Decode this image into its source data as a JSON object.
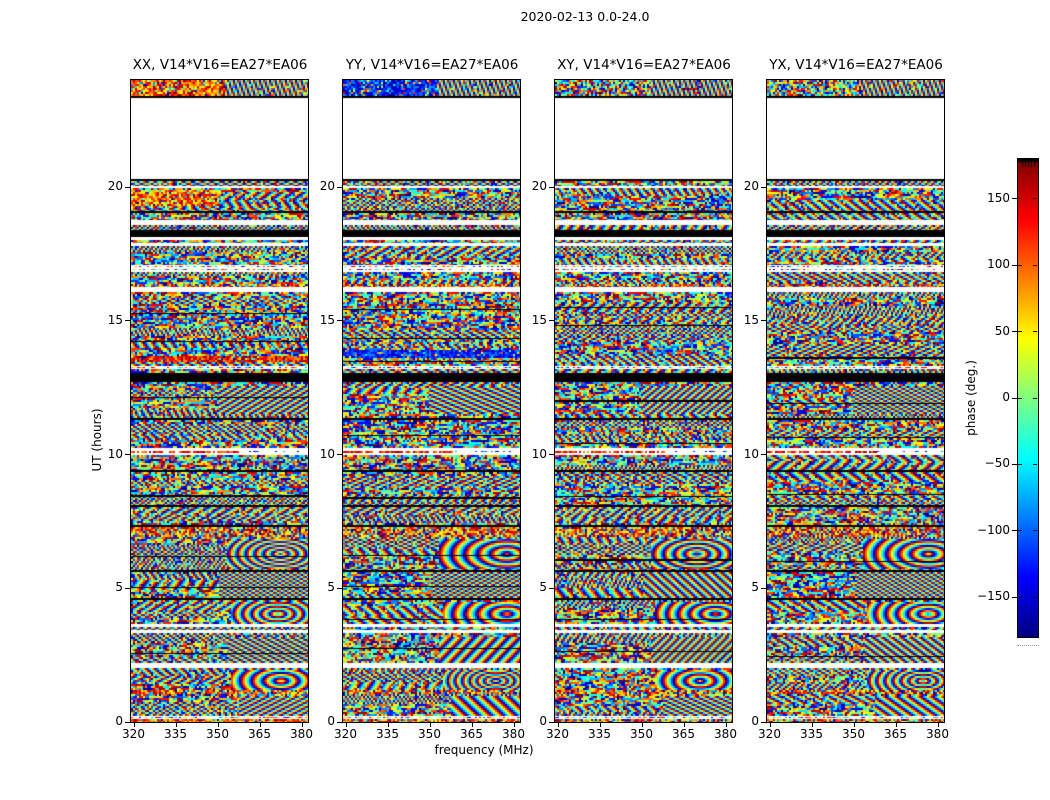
{
  "chart_data": {
    "type": "heatmap",
    "title": "2020-02-13 0.0-24.0",
    "xlabel": "frequency (MHz)",
    "ylabel": "UT (hours)",
    "colorbar": {
      "label": "phase (deg.)",
      "ticks": [
        "150",
        "100",
        "50",
        "0",
        "−50",
        "−100",
        "−150"
      ],
      "tick_values": [
        150,
        100,
        50,
        0,
        -50,
        -100,
        -150
      ],
      "range": [
        -180,
        180
      ],
      "colormap": "jet"
    },
    "x_ticks": {
      "labels": [
        "320",
        "335",
        "350",
        "365",
        "380"
      ],
      "values": [
        320,
        335,
        350,
        365,
        380
      ]
    },
    "y_ticks": {
      "labels": [
        "0",
        "5",
        "10",
        "15",
        "20"
      ],
      "values": [
        0,
        5,
        10,
        15,
        20
      ]
    },
    "x_range_mhz": [
      319.3,
      382.6
    ],
    "y_range_hours": [
      0,
      24
    ],
    "data_gap_hours": [
      20.25,
      23.35
    ],
    "panels": [
      {
        "pol": "XX",
        "title": "XX, V14*V16=EA27*EA06",
        "seed": 11,
        "top_bias": "warm",
        "streak": [
          275,
          282,
          "warm"
        ],
        "patch": [
          0,
          110,
          88,
          16
        ],
        "bottom_bias": "warm"
      },
      {
        "pol": "YY",
        "title": "YY, V14*V16=EA27*EA06",
        "seed": 22,
        "top_bias": "cool",
        "streak": [
          270,
          278,
          "cool"
        ]
      },
      {
        "pol": "XY",
        "title": "XY, V14*V16=EA27*EA06",
        "seed": 33,
        "top_bias": "mix"
      },
      {
        "pol": "YX",
        "title": "YX, V14*V16=EA27*EA06",
        "seed": 44,
        "top_bias": "mix"
      }
    ],
    "band_units": "panel pixel rows; 642 px = 24 h, row 0 = 24 h (top), row 642 = 0 h (bottom)",
    "bands": [
      [
        0,
        16,
        "top"
      ],
      [
        16,
        18,
        "black"
      ],
      [
        18,
        99,
        "white"
      ],
      [
        99,
        101,
        "black"
      ],
      [
        101,
        106,
        "noise"
      ],
      [
        106,
        108,
        "white"
      ],
      [
        108,
        131,
        "noise"
      ],
      [
        131,
        133,
        "black"
      ],
      [
        133,
        140,
        "noise"
      ],
      [
        140,
        145,
        "white"
      ],
      [
        145,
        150,
        "noise"
      ],
      [
        150,
        157,
        "black"
      ],
      [
        157,
        160,
        "white"
      ],
      [
        160,
        163,
        "noise"
      ],
      [
        163,
        166,
        "white"
      ],
      [
        166,
        185,
        "noise"
      ],
      [
        185,
        192,
        "dots"
      ],
      [
        192,
        204,
        "noise"
      ],
      [
        204,
        207,
        "bright"
      ],
      [
        207,
        212,
        "white"
      ],
      [
        212,
        286,
        "noise"
      ],
      [
        286,
        289,
        "dots"
      ],
      [
        289,
        293,
        "noise"
      ],
      [
        293,
        302,
        "black"
      ],
      [
        302,
        338,
        "noise"
      ],
      [
        338,
        340,
        "black"
      ],
      [
        340,
        368,
        "noise"
      ],
      [
        368,
        375,
        "whitered"
      ],
      [
        375,
        390,
        "noise"
      ],
      [
        390,
        392,
        "black"
      ],
      [
        392,
        425,
        "noise"
      ],
      [
        425,
        427,
        "black"
      ],
      [
        427,
        445,
        "noise"
      ],
      [
        445,
        447,
        "black"
      ],
      [
        447,
        457,
        "bright"
      ],
      [
        457,
        490,
        "noise"
      ],
      [
        490,
        492,
        "black"
      ],
      [
        492,
        518,
        "noise"
      ],
      [
        518,
        520,
        "black"
      ],
      [
        520,
        544,
        "noise"
      ],
      [
        544,
        547,
        "white"
      ],
      [
        547,
        550,
        "noise"
      ],
      [
        550,
        553,
        "white"
      ],
      [
        553,
        583,
        "noise"
      ],
      [
        583,
        588,
        "white"
      ],
      [
        588,
        610,
        "noise"
      ],
      [
        610,
        614,
        "bright"
      ],
      [
        614,
        636,
        "noise"
      ],
      [
        636,
        639,
        "dots"
      ],
      [
        639,
        642,
        "bright"
      ]
    ],
    "fringes": [
      [
        85,
        305,
        92,
        28
      ],
      [
        95,
        458,
        82,
        30
      ],
      [
        88,
        492,
        89,
        26
      ],
      [
        100,
        522,
        77,
        22
      ],
      [
        95,
        556,
        82,
        26
      ],
      [
        100,
        590,
        77,
        20
      ],
      [
        108,
        616,
        69,
        20
      ],
      [
        118,
        668,
        59,
        20
      ]
    ]
  }
}
